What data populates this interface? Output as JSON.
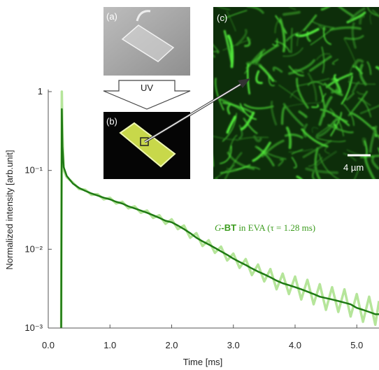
{
  "chart_data": {
    "type": "line",
    "x_label": "Time [ms]",
    "y_label": "Normalized intensity [arb.unit]",
    "annotation": {
      "prefix": "G",
      "bold": "-BT",
      "rest": " in EVA (τ = 1.28 ms)",
      "color": "#3c9c1e"
    },
    "insets": {
      "a": "(a)",
      "b": "(b)",
      "c": "(c)",
      "uv": "UV",
      "scale": "4 µm"
    },
    "ylog": true,
    "xlim": [
      0,
      5.36
    ],
    "ylim": [
      0.001,
      1
    ],
    "xticks": [
      {
        "value": 0,
        "label": "0.0"
      },
      {
        "value": 1,
        "label": "1.0"
      },
      {
        "value": 2,
        "label": "2.0"
      },
      {
        "value": 3,
        "label": "3.0"
      },
      {
        "value": 4,
        "label": "4.0"
      },
      {
        "value": 5,
        "label": "5.0"
      }
    ],
    "yticks": [
      {
        "value": 0.001,
        "label": "10⁻³"
      },
      {
        "value": 0.01,
        "label": "10⁻²"
      },
      {
        "value": 0.1,
        "label": "10⁻¹"
      },
      1
    ],
    "x": [
      0.21,
      0.22,
      0.23,
      0.25,
      0.3,
      0.4,
      0.5,
      0.6,
      0.7,
      0.8,
      0.9,
      1.0,
      1.1,
      1.2,
      1.3,
      1.4,
      1.5,
      1.6,
      1.7,
      1.8,
      1.9,
      2.0,
      2.1,
      2.2,
      2.3,
      2.4,
      2.5,
      2.6,
      2.7,
      2.8,
      2.9,
      3.0,
      3.1,
      3.2,
      3.3,
      3.4,
      3.5,
      3.6,
      3.7,
      3.8,
      3.9,
      4.0,
      4.1,
      4.2,
      4.3,
      4.4,
      4.5,
      4.6,
      4.7,
      4.8,
      4.9,
      5.0,
      5.1,
      5.2,
      5.3,
      5.36
    ],
    "series": [
      {
        "color": "#b5e59a",
        "values": [
          0.001,
          1.0,
          0.3,
          0.1,
          0.082,
          0.07,
          0.058,
          0.057,
          0.049,
          0.05,
          0.043,
          0.045,
          0.038,
          0.04,
          0.033,
          0.035,
          0.029,
          0.031,
          0.025,
          0.027,
          0.021,
          0.024,
          0.018,
          0.02,
          0.014,
          0.016,
          0.011,
          0.013,
          0.009,
          0.0108,
          0.0072,
          0.0088,
          0.0058,
          0.0075,
          0.0047,
          0.0064,
          0.0039,
          0.0056,
          0.0031,
          0.0049,
          0.0027,
          0.0045,
          0.0023,
          0.0041,
          0.002,
          0.0036,
          0.0017,
          0.0033,
          0.0016,
          0.0031,
          0.0014,
          0.0027,
          0.0012,
          0.0025,
          0.0011,
          0.0022
        ]
      },
      {
        "color": "#1f7a14",
        "values": [
          0.001,
          0.6,
          0.2,
          0.11,
          0.085,
          0.068,
          0.06,
          0.055,
          0.051,
          0.048,
          0.045,
          0.043,
          0.04,
          0.038,
          0.035,
          0.033,
          0.031,
          0.029,
          0.027,
          0.025,
          0.023,
          0.022,
          0.02,
          0.018,
          0.016,
          0.014,
          0.0126,
          0.0115,
          0.0104,
          0.0094,
          0.0085,
          0.0076,
          0.0069,
          0.0063,
          0.0057,
          0.0052,
          0.0048,
          0.0044,
          0.004,
          0.0037,
          0.0035,
          0.0033,
          0.0031,
          0.0029,
          0.0027,
          0.0025,
          0.0024,
          0.0023,
          0.0022,
          0.0021,
          0.002,
          0.0018,
          0.0017,
          0.0016,
          0.0015,
          0.0015
        ]
      }
    ]
  }
}
